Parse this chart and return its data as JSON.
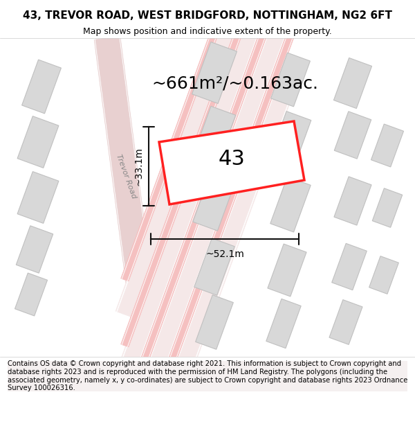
{
  "title": "43, TREVOR ROAD, WEST BRIDGFORD, NOTTINGHAM, NG2 6FT",
  "subtitle": "Map shows position and indicative extent of the property.",
  "area_text": "~661m²/~0.163ac.",
  "label_number": "43",
  "dim_width": "~52.1m",
  "dim_height": "~33.1m",
  "footer": "Contains OS data © Crown copyright and database right 2021. This information is subject to Crown copyright and database rights 2023 and is reproduced with the permission of HM Land Registry. The polygons (including the associated geometry, namely x, y co-ordinates) are subject to Crown copyright and database rights 2023 Ordnance Survey 100026316.",
  "bg_color": "#f5f0f0",
  "map_bg": "#ffffff",
  "road_color_main": "#e8d0d0",
  "road_color_line": "#f0b8b8",
  "building_color": "#d8d8d8",
  "building_edge": "#cccccc",
  "plot_color": "#ff2020",
  "plot_fill": "#ffffff",
  "dim_line_color": "#111111",
  "title_fontsize": 11,
  "subtitle_fontsize": 9,
  "area_fontsize": 18,
  "number_fontsize": 22,
  "dim_fontsize": 10,
  "footer_fontsize": 7.2
}
